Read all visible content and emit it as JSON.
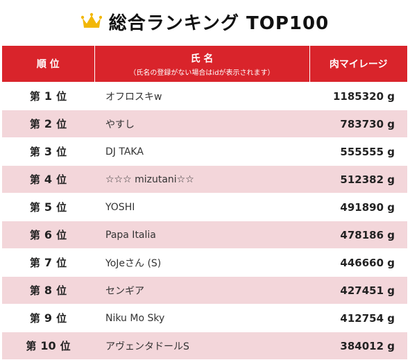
{
  "title": "総合ランキング TOP100",
  "colors": {
    "header_bg": "#d9242b",
    "alt_row": "#f3d6da",
    "crown": "#f2b705"
  },
  "header": {
    "rank": "順 位",
    "name": "氏 名",
    "name_note": "（氏名の登録がない場合はidが表示されます）",
    "meat": "肉マイレージ"
  },
  "rank_prefix": "第",
  "rank_suffix": "位",
  "unit": "g",
  "rows": [
    {
      "rank": "1",
      "name": "オフロスキw",
      "mileage": "1185320"
    },
    {
      "rank": "2",
      "name": "やすし",
      "mileage": "783730"
    },
    {
      "rank": "3",
      "name": "DJ TAKA",
      "mileage": "555555"
    },
    {
      "rank": "4",
      "name": "☆☆☆ mizutani☆☆",
      "mileage": "512382"
    },
    {
      "rank": "5",
      "name": "YOSHI",
      "mileage": "491890"
    },
    {
      "rank": "6",
      "name": "Papa Italia",
      "mileage": "478186"
    },
    {
      "rank": "7",
      "name": "YoJeさん (S)",
      "mileage": "446660"
    },
    {
      "rank": "8",
      "name": "センギア",
      "mileage": "427451"
    },
    {
      "rank": "9",
      "name": "Niku Mo Sky",
      "mileage": "412754"
    },
    {
      "rank": "10",
      "name": "アヴェンタドールS",
      "mileage": "384012"
    }
  ]
}
